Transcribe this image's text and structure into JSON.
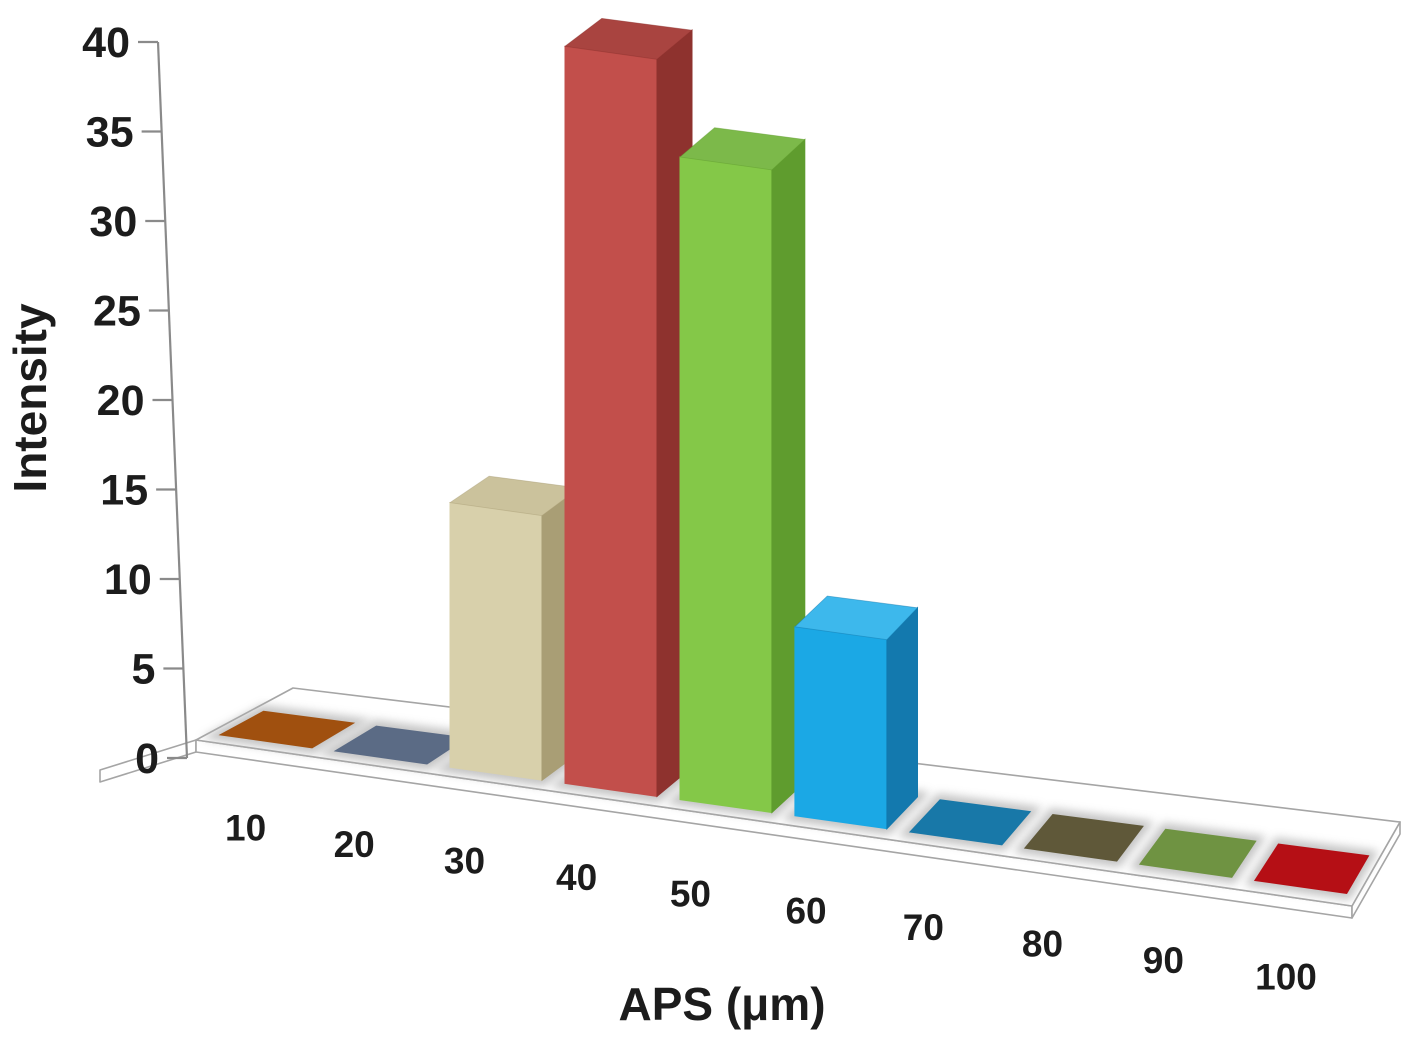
{
  "chart_data": {
    "type": "bar",
    "projection": "3d-perspective",
    "title": "",
    "xlabel": "APS (μm)",
    "ylabel": "Intensity",
    "categories": [
      "10",
      "20",
      "30",
      "40",
      "50",
      "60",
      "70",
      "80",
      "90",
      "100"
    ],
    "values": [
      0.4,
      0.4,
      14,
      39,
      34,
      10,
      0.4,
      0.4,
      0.4,
      0.4
    ],
    "ylim": [
      0,
      40
    ],
    "yticks": [
      0,
      5,
      10,
      15,
      20,
      25,
      30,
      35,
      40
    ],
    "grid": false,
    "legend": false,
    "series_styles": [
      {
        "category": "10",
        "style": "tile",
        "color": "#a0500f"
      },
      {
        "category": "20",
        "style": "tile",
        "color": "#5b6b85"
      },
      {
        "category": "30",
        "style": "bar",
        "front": "#d8d0ab",
        "side": "#a99e75",
        "top": "#cbc29c"
      },
      {
        "category": "40",
        "style": "bar",
        "front": "#c24f4b",
        "side": "#8e322e",
        "top": "#a94440"
      },
      {
        "category": "50",
        "style": "bar",
        "front": "#84c848",
        "side": "#5f9c2e",
        "top": "#7cb94a"
      },
      {
        "category": "60",
        "style": "bar",
        "front": "#1ba8e5",
        "side": "#1379ae",
        "top": "#3db8ec"
      },
      {
        "category": "70",
        "style": "tile",
        "color": "#1878a8"
      },
      {
        "category": "80",
        "style": "tile",
        "color": "#5f5839"
      },
      {
        "category": "90",
        "style": "tile",
        "color": "#6f9342"
      },
      {
        "category": "100",
        "style": "tile",
        "color": "#b50f15"
      }
    ]
  },
  "colors": {
    "text": "#1c1c1c",
    "axis": "#8a8a8a",
    "floor_fill": "#ffffff",
    "floor_stroke": "#a5a5a5",
    "shadow": "#b0b0b0",
    "background": "#ffffff"
  }
}
